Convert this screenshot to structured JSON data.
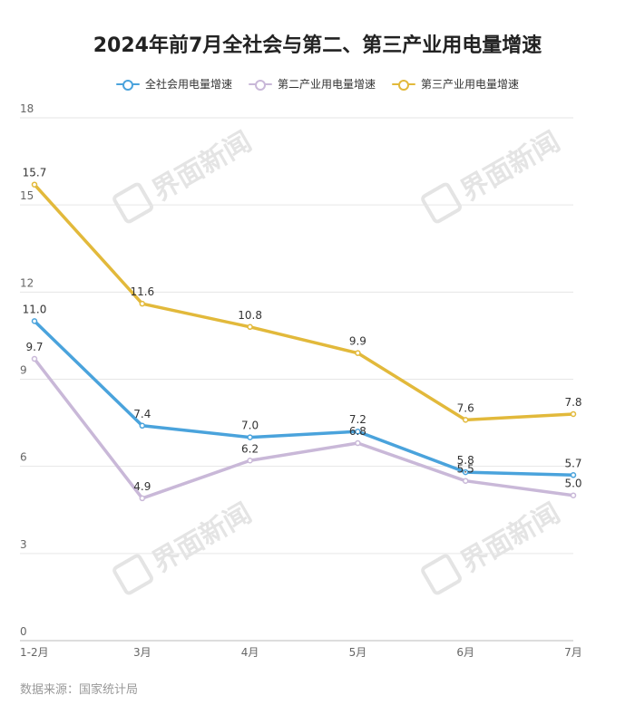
{
  "title": "2024年前7月全社会与第二、第三产业用电量增速",
  "source": "数据来源：国家统计局",
  "watermark": "界面新闻",
  "chart_data": {
    "type": "line",
    "categories": [
      "1-2月",
      "3月",
      "4月",
      "5月",
      "6月",
      "7月"
    ],
    "ylim": [
      0,
      18
    ],
    "yticks": [
      0,
      3,
      6,
      9,
      12,
      15,
      18
    ],
    "grid": true,
    "legend_position": "top-center",
    "series": [
      {
        "name": "全社会用电量增速",
        "color": "#4aa3dc",
        "values": [
          11.0,
          7.4,
          7.0,
          7.2,
          5.8,
          5.7
        ],
        "labels": [
          "11.0",
          "7.4",
          "7.0",
          "7.2",
          "5.8",
          "5.7"
        ]
      },
      {
        "name": "第二产业用电量增速",
        "color": "#c9b8d8",
        "values": [
          9.7,
          4.9,
          6.2,
          6.8,
          5.5,
          5.0
        ],
        "labels": [
          "9.7",
          "4.9",
          "6.2",
          "6.8",
          "5.5",
          "5.0"
        ]
      },
      {
        "name": "第三产业用电量增速",
        "color": "#e2b93b",
        "values": [
          15.7,
          11.6,
          10.8,
          9.9,
          7.6,
          7.8
        ],
        "labels": [
          "15.7",
          "11.6",
          "10.8",
          "9.9",
          "7.6",
          "7.8"
        ]
      }
    ]
  }
}
